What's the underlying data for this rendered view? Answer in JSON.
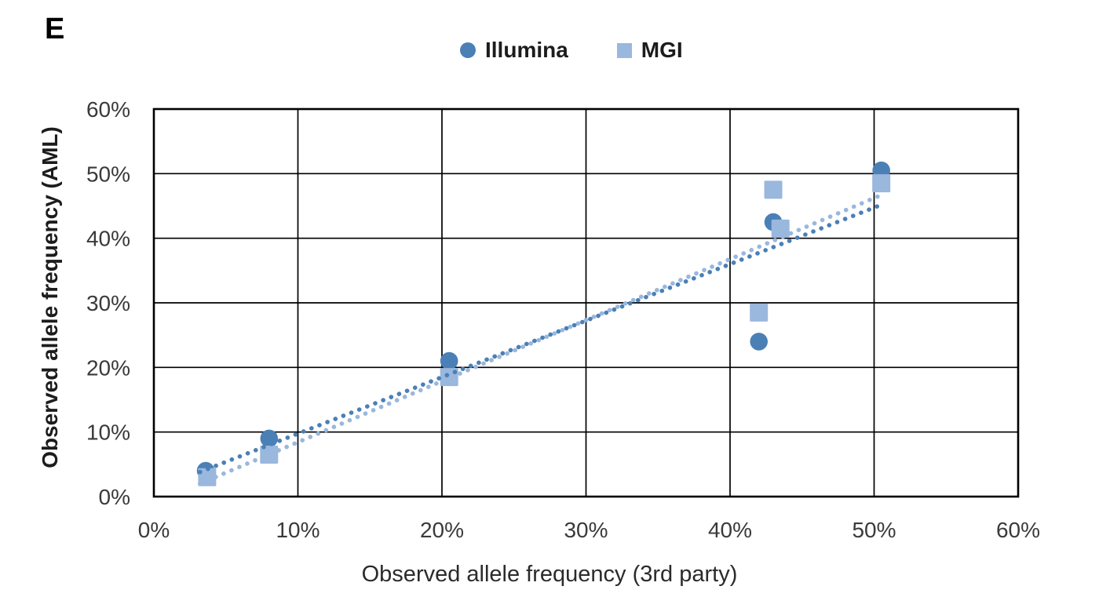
{
  "panel_label": "E",
  "legend": [
    {
      "name": "Illumina",
      "marker": "circle",
      "color": "#4A80B5"
    },
    {
      "name": "MGI",
      "marker": "square",
      "color": "#9AB7DD"
    }
  ],
  "colors": {
    "illumina": "#4A80B5",
    "mgi": "#9AB7DD",
    "gridline": "#000000",
    "axis_border": "#000000",
    "tick_text": "#3a3a3a"
  },
  "chart_data": {
    "type": "scatter",
    "title": "",
    "xlabel": "Observed allele frequency (3rd party)",
    "ylabel": "Observed allele frequency (AML)",
    "xlim": [
      0,
      60
    ],
    "ylim": [
      0,
      60
    ],
    "grid": true,
    "legend_position": "top-center",
    "x_ticks": [
      {
        "value": 0,
        "label": "0%"
      },
      {
        "value": 10,
        "label": "10%"
      },
      {
        "value": 20,
        "label": "20%"
      },
      {
        "value": 30,
        "label": "30%"
      },
      {
        "value": 40,
        "label": "40%"
      },
      {
        "value": 50,
        "label": "50%"
      },
      {
        "value": 60,
        "label": "60%"
      }
    ],
    "y_ticks": [
      {
        "value": 0,
        "label": "0%"
      },
      {
        "value": 10,
        "label": "10%"
      },
      {
        "value": 20,
        "label": "20%"
      },
      {
        "value": 30,
        "label": "30%"
      },
      {
        "value": 40,
        "label": "40%"
      },
      {
        "value": 50,
        "label": "50%"
      },
      {
        "value": 60,
        "label": "60%"
      }
    ],
    "series": [
      {
        "name": "Illumina",
        "marker": "circle",
        "color": "#4A80B5",
        "points": [
          [
            3.6,
            4
          ],
          [
            8,
            9
          ],
          [
            20.5,
            21
          ],
          [
            42,
            24
          ],
          [
            43,
            42.5
          ],
          [
            50.5,
            50.5
          ]
        ],
        "trendline": {
          "style": "dotted",
          "x1": 3.2,
          "y1": 3.8,
          "x2": 50.3,
          "y2": 45.0
        }
      },
      {
        "name": "MGI",
        "marker": "square",
        "color": "#9AB7DD",
        "points": [
          [
            3.7,
            3
          ],
          [
            8,
            6.5
          ],
          [
            20.5,
            18.5
          ],
          [
            42,
            28.5
          ],
          [
            43,
            47.5
          ],
          [
            43.5,
            41.5
          ],
          [
            50.5,
            48.5
          ]
        ],
        "trendline": {
          "style": "dotted",
          "x1": 3.2,
          "y1": 2.0,
          "x2": 50.3,
          "y2": 46.5
        }
      }
    ]
  }
}
